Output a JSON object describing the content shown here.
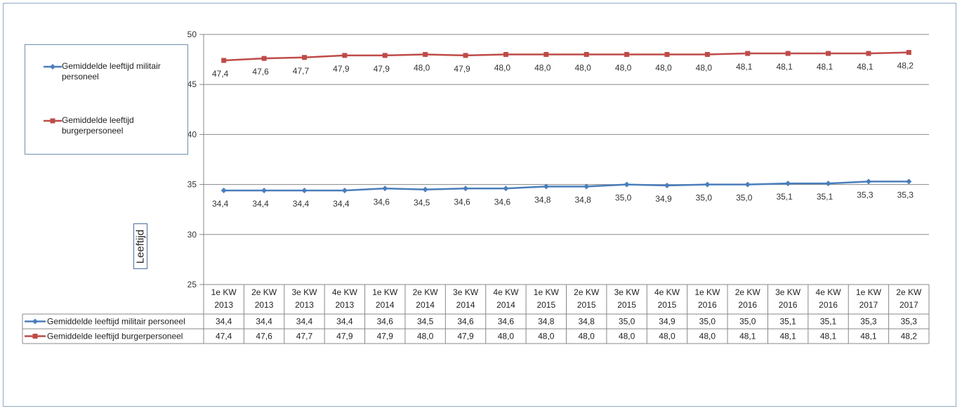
{
  "chart_data": {
    "type": "line",
    "ylabel": "Leeftijd",
    "ylim": [
      25,
      50
    ],
    "yticks": [
      "25",
      "30",
      "35",
      "40",
      "45",
      "50"
    ],
    "grid": true,
    "legend_position": "top-left",
    "categories": [
      [
        "1e KW",
        "2013"
      ],
      [
        "2e KW",
        "2013"
      ],
      [
        "3e KW",
        "2013"
      ],
      [
        "4e KW",
        "2013"
      ],
      [
        "1e KW",
        "2014"
      ],
      [
        "2e KW",
        "2014"
      ],
      [
        "3e KW",
        "2014"
      ],
      [
        "4e KW",
        "2014"
      ],
      [
        "1e KW",
        "2015"
      ],
      [
        "2e KW",
        "2015"
      ],
      [
        "3e KW",
        "2015"
      ],
      [
        "4e KW",
        "2015"
      ],
      [
        "1e KW",
        "2016"
      ],
      [
        "2e KW",
        "2016"
      ],
      [
        "3e KW",
        "2016"
      ],
      [
        "4e KW",
        "2016"
      ],
      [
        "1e KW",
        "2017"
      ],
      [
        "2e KW",
        "2017"
      ]
    ],
    "series": [
      {
        "name": "Gemiddelde leeftijd militair personeel",
        "color": "#4a7ebb",
        "marker": "diamond",
        "values": [
          34.4,
          34.4,
          34.4,
          34.4,
          34.6,
          34.5,
          34.6,
          34.6,
          34.8,
          34.8,
          35.0,
          34.9,
          35.0,
          35.0,
          35.1,
          35.1,
          35.3,
          35.3
        ],
        "labels": [
          "34,4",
          "34,4",
          "34,4",
          "34,4",
          "34,6",
          "34,5",
          "34,6",
          "34,6",
          "34,8",
          "34,8",
          "35,0",
          "34,9",
          "35,0",
          "35,0",
          "35,1",
          "35,1",
          "35,3",
          "35,3"
        ]
      },
      {
        "name": "Gemiddelde leeftijd burgerpersoneel",
        "color": "#be4b48",
        "marker": "square",
        "values": [
          47.4,
          47.6,
          47.7,
          47.9,
          47.9,
          48.0,
          47.9,
          48.0,
          48.0,
          48.0,
          48.0,
          48.0,
          48.0,
          48.1,
          48.1,
          48.1,
          48.1,
          48.2
        ],
        "labels": [
          "47,4",
          "47,6",
          "47,7",
          "47,9",
          "47,9",
          "48,0",
          "47,9",
          "48,0",
          "48,0",
          "48,0",
          "48,0",
          "48,0",
          "48,0",
          "48,1",
          "48,1",
          "48,1",
          "48,1",
          "48,2"
        ]
      }
    ]
  },
  "legend": {
    "items": [
      {
        "text": "Gemiddelde leeftijd militair personeel",
        "color": "#4a7ebb",
        "marker": "diamond"
      },
      {
        "text": "Gemiddelde leeftijd burgerpersoneel",
        "color": "#be4b48",
        "marker": "square"
      }
    ]
  },
  "colors": {
    "grid": "#888888",
    "table_border": "#888888",
    "frame": "#8ea9c8"
  }
}
